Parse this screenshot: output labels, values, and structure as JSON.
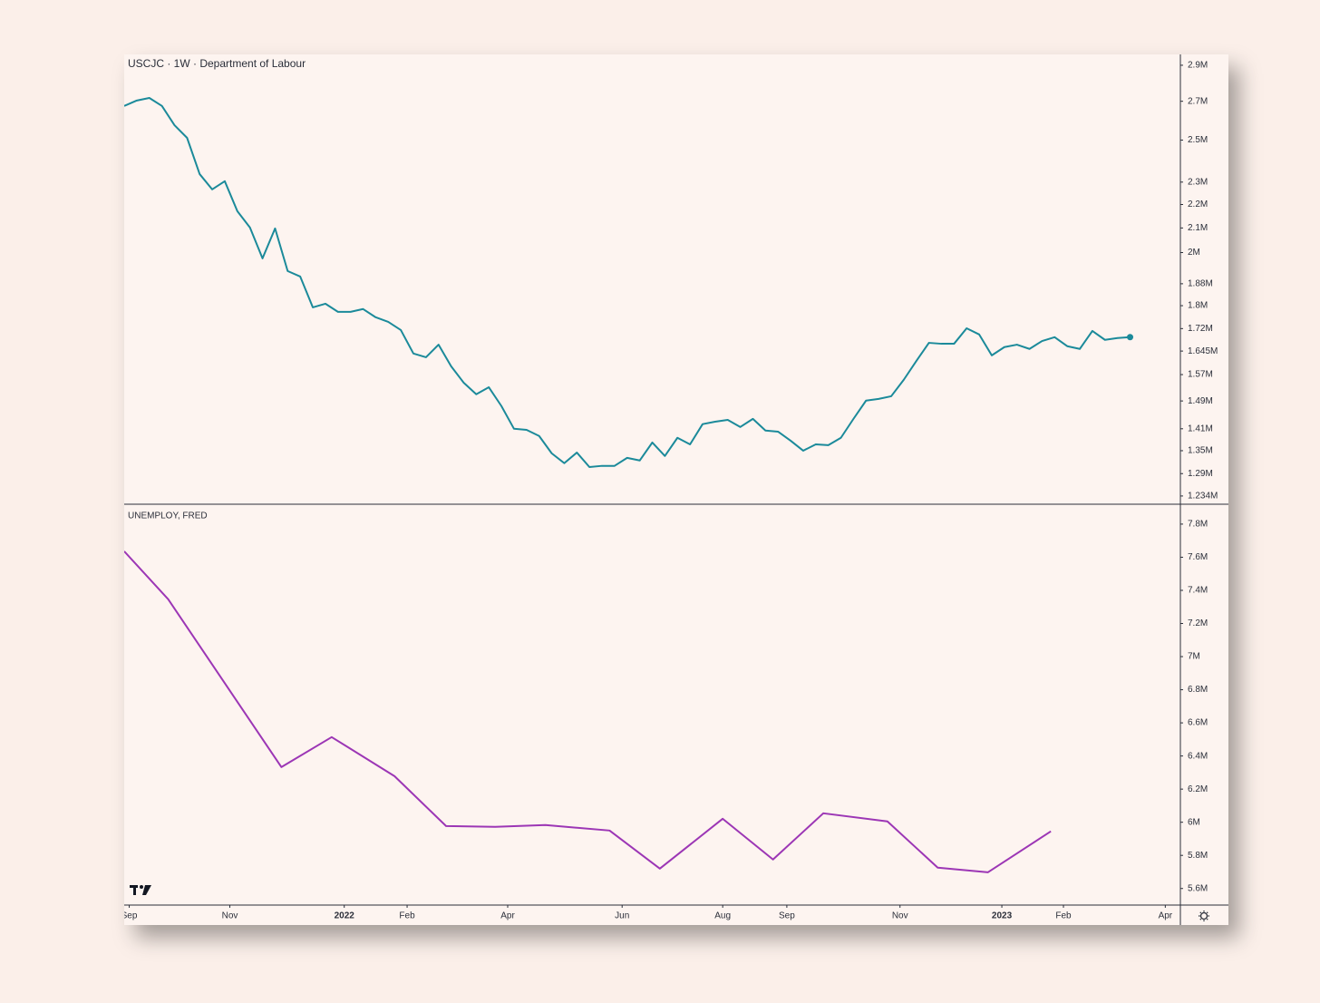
{
  "chart_data": [
    {
      "type": "line",
      "title": "USCJC · 1W · Department of Labour",
      "log": true,
      "color": "#1b8a9a",
      "last_point_marker": true,
      "x": [
        0,
        1,
        2,
        3,
        4,
        5,
        6,
        7,
        8,
        9,
        10,
        11,
        12,
        13,
        14,
        15,
        16,
        17,
        18,
        19,
        20,
        21,
        22,
        23,
        24,
        25,
        26,
        27,
        28,
        29,
        30,
        31,
        32,
        33,
        34,
        35,
        36,
        37,
        38,
        39,
        40,
        41,
        42,
        43,
        44,
        45,
        46,
        47,
        48,
        49,
        50,
        51,
        52,
        53,
        54,
        55,
        56,
        57,
        58,
        59,
        60,
        61,
        62,
        63,
        64,
        65,
        66,
        67,
        68,
        69,
        70,
        71,
        72,
        73,
        74,
        75,
        76,
        77,
        78,
        79,
        80
      ],
      "values": [
        2675000,
        2704000,
        2718000,
        2675000,
        2575000,
        2511000,
        2337000,
        2267000,
        2304000,
        2171000,
        2102000,
        1977000,
        2098000,
        1928000,
        1907000,
        1794000,
        1807000,
        1778000,
        1778000,
        1788000,
        1759000,
        1743000,
        1715000,
        1637000,
        1625000,
        1666000,
        1596000,
        1545000,
        1510000,
        1531000,
        1475000,
        1410000,
        1407000,
        1390000,
        1343000,
        1317000,
        1345000,
        1307000,
        1310000,
        1310000,
        1331000,
        1324000,
        1372000,
        1336000,
        1385000,
        1367000,
        1423000,
        1430000,
        1435000,
        1415000,
        1438000,
        1405000,
        1402000,
        1377000,
        1350000,
        1367000,
        1365000,
        1385000,
        1438000,
        1491000,
        1496000,
        1504000,
        1554000,
        1613000,
        1672000,
        1669000,
        1669000,
        1721000,
        1700000,
        1631000,
        1658000,
        1666000,
        1652000,
        1678000,
        1691000,
        1661000,
        1652000,
        1712000,
        1682000,
        1688000,
        1691000
      ],
      "xlim": [
        0,
        84
      ],
      "ylim": [
        1214000,
        2963000
      ],
      "yticks": [
        {
          "value": 2900000,
          "label": "2.9M"
        },
        {
          "value": 2700000,
          "label": "2.7M"
        },
        {
          "value": 2500000,
          "label": "2.5M"
        },
        {
          "value": 2300000,
          "label": "2.3M"
        },
        {
          "value": 2200000,
          "label": "2.2M"
        },
        {
          "value": 2100000,
          "label": "2.1M"
        },
        {
          "value": 2000000,
          "label": "2M"
        },
        {
          "value": 1880000,
          "label": "1.88M"
        },
        {
          "value": 1800000,
          "label": "1.8M"
        },
        {
          "value": 1720000,
          "label": "1.72M"
        },
        {
          "value": 1645000,
          "label": "1.645M"
        },
        {
          "value": 1570000,
          "label": "1.57M"
        },
        {
          "value": 1490000,
          "label": "1.49M"
        },
        {
          "value": 1410000,
          "label": "1.41M"
        },
        {
          "value": 1350000,
          "label": "1.35M"
        },
        {
          "value": 1290000,
          "label": "1.29M"
        },
        {
          "value": 1234000,
          "label": "1.234M"
        }
      ]
    },
    {
      "type": "line",
      "title": "UNEMPLOY, FRED",
      "log": false,
      "color": "#9c36b5",
      "x": [
        0,
        3.5,
        12.5,
        16.5,
        21.5,
        25.6,
        29.5,
        33.5,
        38.6,
        42.6,
        47.6,
        51.6,
        55.6,
        60.7,
        64.7,
        68.7,
        73.7
      ],
      "values": [
        7636000,
        7346000,
        6333000,
        6514000,
        6278000,
        5977000,
        5972000,
        5983000,
        5950000,
        5720000,
        6021000,
        5775000,
        6054000,
        6005000,
        5726000,
        5698000,
        5945000
      ],
      "xlim": [
        0,
        84
      ],
      "ylim": [
        5500000,
        7920000
      ],
      "yticks": [
        {
          "value": 7800000,
          "label": "7.8M"
        },
        {
          "value": 7600000,
          "label": "7.6M"
        },
        {
          "value": 7400000,
          "label": "7.4M"
        },
        {
          "value": 7200000,
          "label": "7.2M"
        },
        {
          "value": 7000000,
          "label": "7M"
        },
        {
          "value": 6800000,
          "label": "6.8M"
        },
        {
          "value": 6600000,
          "label": "6.6M"
        },
        {
          "value": 6400000,
          "label": "6.4M"
        },
        {
          "value": 6200000,
          "label": "6.2M"
        },
        {
          "value": 6000000,
          "label": "6M"
        },
        {
          "value": 5800000,
          "label": "5.8M"
        },
        {
          "value": 5600000,
          "label": "5.6M"
        }
      ],
      "xticks": [
        {
          "value": 0.4,
          "label": "Sep"
        },
        {
          "value": 8.4,
          "label": "Nov"
        },
        {
          "value": 17.5,
          "label": "2022"
        },
        {
          "value": 22.5,
          "label": "Feb"
        },
        {
          "value": 30.5,
          "label": "Apr"
        },
        {
          "value": 39.6,
          "label": "Jun"
        },
        {
          "value": 47.6,
          "label": "Aug"
        },
        {
          "value": 52.7,
          "label": "Sep"
        },
        {
          "value": 61.7,
          "label": "Nov"
        },
        {
          "value": 69.8,
          "label": "2023"
        },
        {
          "value": 74.7,
          "label": "Feb"
        },
        {
          "value": 82.8,
          "label": "Apr"
        }
      ]
    }
  ]
}
